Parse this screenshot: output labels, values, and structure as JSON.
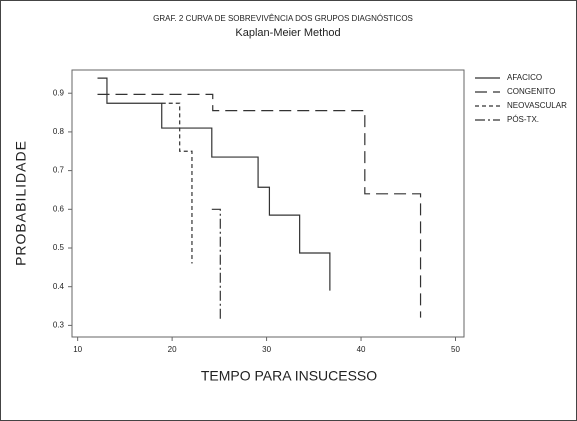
{
  "chart_data": {
    "type": "step",
    "title": "GRAF. 2 CURVA DE SOBREVIVÊNCIA DOS GRUPOS DIAGNÓSTICOS",
    "subtitle": "Kaplan-Meier Method",
    "x_label": "TEMPO PARA INSUCESSO",
    "y_label": "PROBABILIDADE",
    "xlim": [
      9.4,
      50.9
    ],
    "xticks": [
      10,
      20,
      30,
      40,
      50
    ],
    "ylim": [
      0.27,
      0.96
    ],
    "yticks": [
      0.3,
      0.4,
      0.5,
      0.6,
      0.7,
      0.8,
      0.9
    ],
    "legend": "right",
    "series": [
      {
        "name": "AFACICO",
        "color": "#333333",
        "dash": "solid",
        "x": [
          12.1,
          13.1,
          18.9,
          24.2,
          29.1,
          30.3,
          33.5,
          36.7
        ],
        "values": [
          0.939,
          0.874,
          0.81,
          0.735,
          0.657,
          0.585,
          0.487,
          0.39
        ]
      },
      {
        "name": "CONGENITO",
        "color": "#333333",
        "dash": "long-dash",
        "x": [
          12.1,
          24.3,
          40.4,
          46.3
        ],
        "values": [
          0.897,
          0.855,
          0.64,
          0.32
        ]
      },
      {
        "name": "NEOVASCULAR",
        "color": "#333333",
        "dash": "short-dash",
        "x": [
          18.9,
          20.8,
          22.1
        ],
        "values": [
          0.874,
          0.75,
          0.46
        ]
      },
      {
        "name": "PÓS-TX.",
        "color": "#333333",
        "dash": "dash-dot",
        "x": [
          24.2,
          25.1
        ],
        "values": [
          0.6,
          0.31
        ]
      }
    ]
  }
}
